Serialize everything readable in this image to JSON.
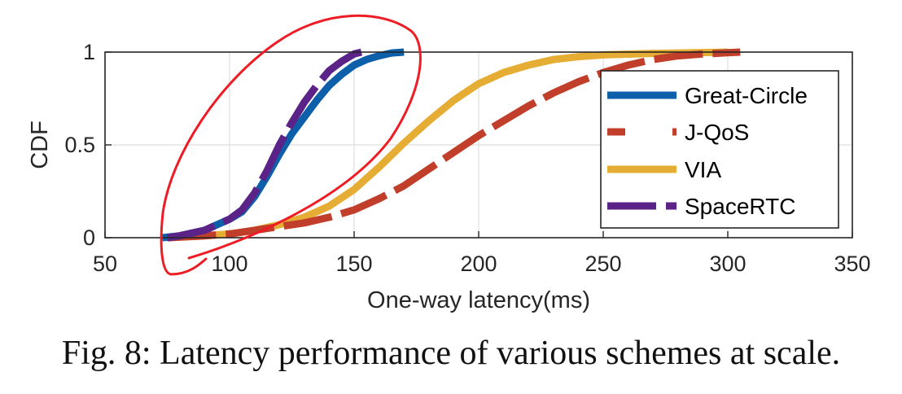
{
  "chart_data": {
    "type": "line",
    "xlabel": "One-way latency(ms)",
    "ylabel": "CDF",
    "xlim": [
      50,
      350
    ],
    "ylim": [
      0,
      1
    ],
    "x_ticks": [
      50,
      100,
      150,
      200,
      250,
      300,
      350
    ],
    "y_ticks": [
      0,
      0.5,
      1
    ],
    "x_tick_labels": [
      "50",
      "100",
      "150",
      "200",
      "250",
      "300",
      "350"
    ],
    "y_tick_labels": [
      "0",
      "0.5",
      "1"
    ],
    "grid": true,
    "legend_position": "right",
    "series": [
      {
        "name": "Great-Circle",
        "color": "#0c5fa8",
        "style": "solid",
        "points": [
          [
            73,
            0
          ],
          [
            80,
            0.01
          ],
          [
            90,
            0.04
          ],
          [
            100,
            0.1
          ],
          [
            105,
            0.14
          ],
          [
            110,
            0.22
          ],
          [
            115,
            0.33
          ],
          [
            120,
            0.45
          ],
          [
            125,
            0.56
          ],
          [
            130,
            0.65
          ],
          [
            135,
            0.74
          ],
          [
            140,
            0.82
          ],
          [
            145,
            0.88
          ],
          [
            150,
            0.93
          ],
          [
            155,
            0.96
          ],
          [
            160,
            0.98
          ],
          [
            165,
            0.995
          ],
          [
            170,
            1
          ]
        ]
      },
      {
        "name": "J-QoS",
        "color": "#c03e2a",
        "style": "dashed",
        "points": [
          [
            75,
            0
          ],
          [
            90,
            0.01
          ],
          [
            100,
            0.02
          ],
          [
            110,
            0.04
          ],
          [
            120,
            0.06
          ],
          [
            130,
            0.08
          ],
          [
            140,
            0.11
          ],
          [
            150,
            0.15
          ],
          [
            160,
            0.21
          ],
          [
            170,
            0.28
          ],
          [
            180,
            0.37
          ],
          [
            190,
            0.46
          ],
          [
            200,
            0.55
          ],
          [
            210,
            0.63
          ],
          [
            220,
            0.71
          ],
          [
            230,
            0.78
          ],
          [
            240,
            0.84
          ],
          [
            250,
            0.89
          ],
          [
            260,
            0.93
          ],
          [
            270,
            0.96
          ],
          [
            280,
            0.98
          ],
          [
            290,
            0.99
          ],
          [
            305,
            1
          ]
        ]
      },
      {
        "name": "VIA",
        "color": "#e6ad34",
        "style": "solid",
        "points": [
          [
            75,
            0
          ],
          [
            90,
            0.01
          ],
          [
            100,
            0.02
          ],
          [
            110,
            0.04
          ],
          [
            120,
            0.07
          ],
          [
            130,
            0.11
          ],
          [
            140,
            0.17
          ],
          [
            150,
            0.26
          ],
          [
            160,
            0.38
          ],
          [
            170,
            0.51
          ],
          [
            180,
            0.63
          ],
          [
            190,
            0.74
          ],
          [
            200,
            0.83
          ],
          [
            210,
            0.89
          ],
          [
            220,
            0.93
          ],
          [
            230,
            0.96
          ],
          [
            240,
            0.975
          ],
          [
            250,
            0.985
          ],
          [
            270,
            0.993
          ],
          [
            300,
            1
          ]
        ]
      },
      {
        "name": "SpaceRTC",
        "color": "#5b2387",
        "style": "dashed",
        "points": [
          [
            75,
            0
          ],
          [
            80,
            0.01
          ],
          [
            90,
            0.04
          ],
          [
            100,
            0.1
          ],
          [
            105,
            0.15
          ],
          [
            110,
            0.24
          ],
          [
            115,
            0.36
          ],
          [
            120,
            0.5
          ],
          [
            125,
            0.62
          ],
          [
            130,
            0.73
          ],
          [
            135,
            0.82
          ],
          [
            140,
            0.9
          ],
          [
            145,
            0.95
          ],
          [
            150,
            0.99
          ],
          [
            153,
            1
          ]
        ]
      }
    ]
  },
  "caption": "Fig. 8: Latency performance of various schemes at scale."
}
